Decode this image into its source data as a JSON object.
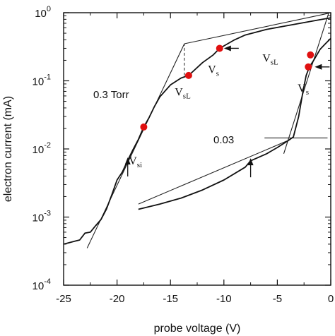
{
  "chart_data": {
    "type": "line",
    "xlabel": "probe voltage (V)",
    "ylabel": "electron current (mA)",
    "xlim": [
      -25,
      0
    ],
    "ylim": [
      0.0001,
      1
    ],
    "yscale": "log",
    "x_ticks": [
      "-25",
      "-20",
      "-15",
      "-10",
      "-5",
      "0"
    ],
    "y_ticks": [
      {
        "base": "10",
        "exp": "0"
      },
      {
        "base": "10",
        "exp": "-1"
      },
      {
        "base": "10",
        "exp": "-2"
      },
      {
        "base": "10",
        "exp": "-3"
      },
      {
        "base": "10",
        "exp": "-4"
      }
    ],
    "grid": false,
    "series": [
      {
        "name": "0.3 Torr",
        "x": [
          -25,
          -24.5,
          -24,
          -23.5,
          -23,
          -22.5,
          -22,
          -21.5,
          -21,
          -20.5,
          -20,
          -19.5,
          -19,
          -18.5,
          -18,
          -17.5,
          -17,
          -16.5,
          -16,
          -15,
          -14,
          -13.3,
          -12,
          -11,
          -10.4,
          -9,
          -8,
          -6,
          -4,
          -2,
          -1,
          0
        ],
        "y": [
          0.0004,
          0.00042,
          0.00044,
          0.00046,
          0.00058,
          0.0006,
          0.00075,
          0.00092,
          0.0013,
          0.0021,
          0.0035,
          0.0046,
          0.0068,
          0.0098,
          0.0138,
          0.021,
          0.029,
          0.042,
          0.058,
          0.087,
          0.11,
          0.12,
          0.185,
          0.24,
          0.3,
          0.4,
          0.47,
          0.57,
          0.65,
          0.74,
          0.79,
          0.84
        ]
      },
      {
        "name": "0.03",
        "x": [
          -18,
          -16,
          -14,
          -12,
          -10,
          -8,
          -7.5,
          -6,
          -5,
          -4,
          -3.5,
          -3,
          -2.6,
          -2.3,
          -2,
          -1.6,
          -1,
          -0.5,
          0
        ],
        "y": [
          0.0013,
          0.00155,
          0.0019,
          0.0025,
          0.0035,
          0.0054,
          0.0067,
          0.0085,
          0.0105,
          0.0132,
          0.015,
          0.03,
          0.07,
          0.12,
          0.16,
          0.2,
          0.29,
          0.35,
          0.42
        ]
      }
    ],
    "fit_lines": [
      {
        "x": [
          -22.8,
          -13.7
        ],
        "y": [
          0.00035,
          0.35
        ]
      },
      {
        "x": [
          -13.7,
          -0.2
        ],
        "y": [
          0.35,
          0.98
        ]
      },
      {
        "x": [
          -18,
          -3.9
        ],
        "y": [
          0.00155,
          0.0135
        ]
      },
      {
        "x": [
          -4.4,
          -0.2
        ],
        "y": [
          0.0085,
          0.98
        ]
      },
      {
        "x": [
          -6.2,
          -0.3
        ],
        "y": [
          0.0145,
          0.0145
        ]
      }
    ],
    "dashed_markers": [
      {
        "x": -13.7,
        "y_from": 0.12,
        "y_to": 0.35
      }
    ],
    "highlighted_points": [
      {
        "x": -17.5,
        "y": 0.021
      },
      {
        "x": -13.3,
        "y": 0.12
      },
      {
        "x": -10.4,
        "y": 0.3
      },
      {
        "x": -1.9,
        "y": 0.24
      },
      {
        "x": -2.1,
        "y": 0.16
      }
    ],
    "arrows": [
      {
        "x": -19,
        "y": 0.007,
        "direction": "up"
      },
      {
        "x": -7.5,
        "y": 0.0068,
        "direction": "up"
      },
      {
        "x": -9.8,
        "y": 0.3,
        "direction": "left"
      },
      {
        "x": -1.3,
        "y": 0.16,
        "direction": "left"
      }
    ],
    "annotations": {
      "curve_03": "0.3 Torr",
      "curve_003": "0.03",
      "v_labels": [
        {
          "main": "V",
          "sub": "si",
          "x": -18.9,
          "y": 0.0068
        },
        {
          "main": "V",
          "sub": "sL",
          "x": -14.6,
          "y": 0.07
        },
        {
          "main": "V",
          "sub": "s",
          "x": -11.5,
          "y": 0.15
        },
        {
          "main": "V",
          "sub": "sL",
          "x": -6.4,
          "y": 0.22
        },
        {
          "main": "V",
          "sub": "s",
          "x": -3.1,
          "y": 0.08
        }
      ]
    }
  }
}
